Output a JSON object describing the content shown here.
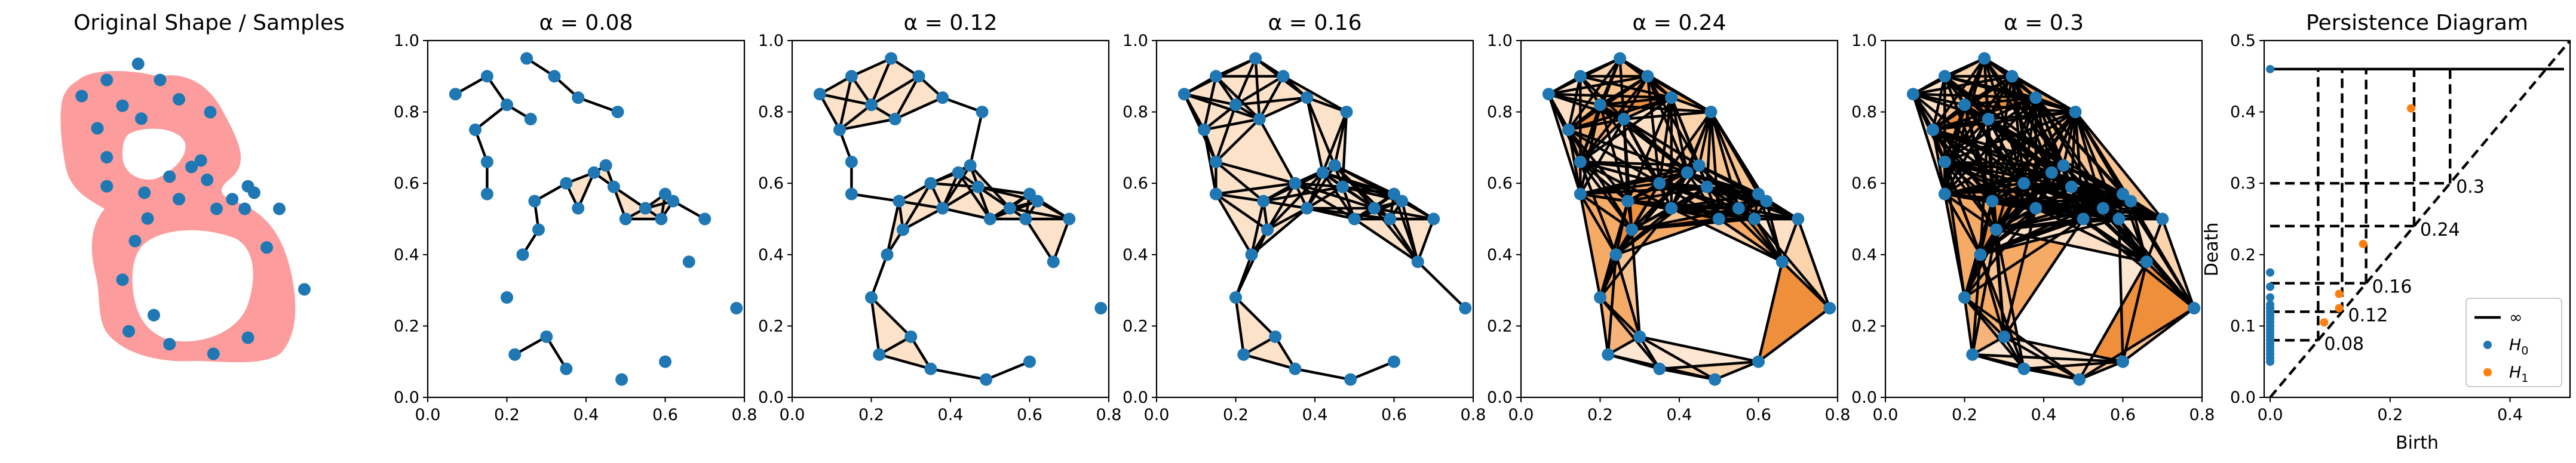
{
  "colors": {
    "points": "#1f77b4",
    "h1_points": "#ff7f0e",
    "shape_fill": "#fc9c9c",
    "edge": "#000000"
  },
  "chart_data": [
    {
      "type": "scatter",
      "panel": "shape",
      "title": "Original Shape / Samples",
      "axes_visible": false,
      "shape_fill": "#fc9c9c",
      "points": [
        [
          0.07,
          0.85
        ],
        [
          0.15,
          0.9
        ],
        [
          0.25,
          0.95
        ],
        [
          0.32,
          0.9
        ],
        [
          0.2,
          0.82
        ],
        [
          0.12,
          0.75
        ],
        [
          0.15,
          0.66
        ],
        [
          0.26,
          0.78
        ],
        [
          0.38,
          0.84
        ],
        [
          0.48,
          0.8
        ],
        [
          0.15,
          0.57
        ],
        [
          0.27,
          0.55
        ],
        [
          0.35,
          0.6
        ],
        [
          0.42,
          0.63
        ],
        [
          0.45,
          0.65
        ],
        [
          0.38,
          0.53
        ],
        [
          0.47,
          0.59
        ],
        [
          0.5,
          0.5
        ],
        [
          0.55,
          0.53
        ],
        [
          0.6,
          0.57
        ],
        [
          0.59,
          0.5
        ],
        [
          0.62,
          0.55
        ],
        [
          0.7,
          0.5
        ],
        [
          0.28,
          0.47
        ],
        [
          0.24,
          0.4
        ],
        [
          0.66,
          0.38
        ],
        [
          0.2,
          0.28
        ],
        [
          0.3,
          0.17
        ],
        [
          0.22,
          0.12
        ],
        [
          0.35,
          0.08
        ],
        [
          0.49,
          0.05
        ],
        [
          0.6,
          0.1
        ],
        [
          0.78,
          0.25
        ]
      ]
    },
    {
      "type": "scatter",
      "panel": "complex",
      "title": "α = 0.08",
      "alpha": 0.08,
      "xlim": [
        0,
        0.8
      ],
      "ylim": [
        0,
        1.0
      ],
      "xticks": [
        "0.0",
        "0.2",
        "0.4",
        "0.6",
        "0.8"
      ],
      "yticks": [
        "0.0",
        "0.2",
        "0.4",
        "0.6",
        "0.8",
        "1.0"
      ]
    },
    {
      "type": "scatter",
      "panel": "complex",
      "title": "α = 0.12",
      "alpha": 0.12,
      "xlim": [
        0,
        0.8
      ],
      "ylim": [
        0,
        1.0
      ],
      "xticks": [
        "0.0",
        "0.2",
        "0.4",
        "0.6",
        "0.8"
      ],
      "yticks": [
        "0.0",
        "0.2",
        "0.4",
        "0.6",
        "0.8",
        "1.0"
      ]
    },
    {
      "type": "scatter",
      "panel": "complex",
      "title": "α = 0.16",
      "alpha": 0.16,
      "xlim": [
        0,
        0.8
      ],
      "ylim": [
        0,
        1.0
      ],
      "xticks": [
        "0.0",
        "0.2",
        "0.4",
        "0.6",
        "0.8"
      ],
      "yticks": [
        "0.0",
        "0.2",
        "0.4",
        "0.6",
        "0.8",
        "1.0"
      ]
    },
    {
      "type": "scatter",
      "panel": "complex",
      "title": "α = 0.24",
      "alpha": 0.24,
      "xlim": [
        0,
        0.8
      ],
      "ylim": [
        0,
        1.0
      ],
      "xticks": [
        "0.0",
        "0.2",
        "0.4",
        "0.6",
        "0.8"
      ],
      "yticks": [
        "0.0",
        "0.2",
        "0.4",
        "0.6",
        "0.8",
        "1.0"
      ]
    },
    {
      "type": "scatter",
      "panel": "complex",
      "title": "α = 0.3",
      "alpha": 0.3,
      "xlim": [
        0,
        0.8
      ],
      "ylim": [
        0,
        1.0
      ],
      "xticks": [
        "0.0",
        "0.2",
        "0.4",
        "0.6",
        "0.8"
      ],
      "yticks": [
        "0.0",
        "0.2",
        "0.4",
        "0.6",
        "0.8",
        "1.0"
      ]
    },
    {
      "type": "scatter",
      "panel": "persistence",
      "title": "Persistence Diagram",
      "xlabel": "Birth",
      "ylabel": "Death",
      "xlim": [
        -0.01,
        0.5
      ],
      "ylim": [
        0,
        0.5
      ],
      "xticks": [
        "0.0",
        "0.2",
        "0.4"
      ],
      "yticks": [
        "0.0",
        "0.1",
        "0.2",
        "0.3",
        "0.4",
        "0.5"
      ],
      "infinity_death": 0.46,
      "alpha_levels": [
        {
          "value": 0.08,
          "label": "0.08"
        },
        {
          "value": 0.12,
          "label": "0.12"
        },
        {
          "value": 0.16,
          "label": "0.16"
        },
        {
          "value": 0.24,
          "label": "0.24"
        },
        {
          "value": 0.3,
          "label": "0.3"
        }
      ],
      "series": [
        {
          "name": "∞",
          "kind": "line",
          "points": [
            [
              0.0,
              0.46
            ]
          ]
        },
        {
          "name": "H0",
          "kind": "scatter",
          "points": [
            [
              0,
              0.46
            ],
            [
              0,
              0.175
            ],
            [
              0,
              0.155
            ],
            [
              0,
              0.14
            ],
            [
              0,
              0.13
            ],
            [
              0,
              0.125
            ],
            [
              0,
              0.12
            ],
            [
              0,
              0.115
            ],
            [
              0,
              0.11
            ],
            [
              0,
              0.105
            ],
            [
              0,
              0.1
            ],
            [
              0,
              0.095
            ],
            [
              0,
              0.09
            ],
            [
              0,
              0.085
            ],
            [
              0,
              0.08
            ],
            [
              0,
              0.075
            ],
            [
              0,
              0.07
            ],
            [
              0,
              0.065
            ],
            [
              0,
              0.06
            ],
            [
              0,
              0.055
            ],
            [
              0,
              0.05
            ]
          ]
        },
        {
          "name": "H1",
          "kind": "scatter",
          "points": [
            [
              0.235,
              0.405
            ],
            [
              0.155,
              0.215
            ],
            [
              0.115,
              0.145
            ],
            [
              0.115,
              0.125
            ],
            [
              0.09,
              0.105
            ]
          ]
        }
      ],
      "legend": {
        "position": "lower right",
        "entries": [
          {
            "symbol": "line",
            "label": "∞"
          },
          {
            "symbol": "dot-blue",
            "label": "H",
            "sub": "0"
          },
          {
            "symbol": "dot-orange",
            "label": "H",
            "sub": "1"
          }
        ]
      }
    }
  ]
}
